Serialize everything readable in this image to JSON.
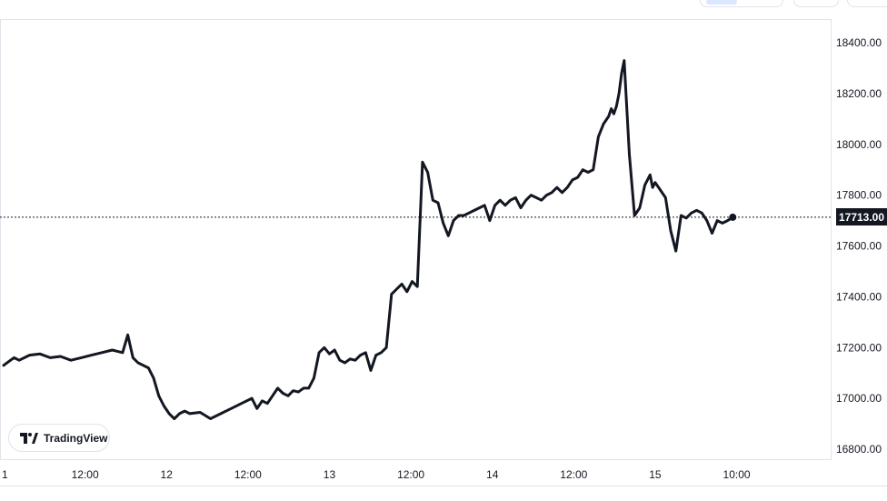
{
  "toolbar": {
    "visible_buttons": [
      "",
      "",
      ""
    ]
  },
  "branding": {
    "logo_text": "TradingView",
    "logo_icon": "tradingview-logo-icon"
  },
  "price_marker": {
    "label": "17713.00",
    "value": 17713.0,
    "color": "#131722"
  },
  "chart_data": {
    "type": "line",
    "title": "",
    "xlabel": "",
    "ylabel": "",
    "x_ticks": [
      "1",
      "12:00",
      "12",
      "12:00",
      "13",
      "12:00",
      "14",
      "12:00",
      "15",
      "10:00"
    ],
    "y_ticks": [
      "18400.00",
      "18200.00",
      "18000.00",
      "17800.00",
      "17600.00",
      "17400.00",
      "17200.00",
      "17000.00",
      "16800.00"
    ],
    "y_tick_values": [
      18400,
      18200,
      18000,
      17800,
      17600,
      17400,
      17200,
      17000,
      16800
    ],
    "ylim": [
      16770,
      18500
    ],
    "grid": false,
    "line_color": "#131722",
    "series": [
      {
        "x_hours": [
          0,
          1,
          2,
          3,
          5,
          7,
          9,
          11,
          13,
          15,
          17,
          19,
          21,
          23,
          24,
          25,
          26,
          27,
          28,
          29,
          30,
          31,
          32,
          33,
          34,
          35,
          36,
          38,
          40,
          42,
          44,
          46,
          48,
          49,
          50,
          51,
          52,
          53,
          54,
          55,
          56,
          57,
          58,
          59,
          60,
          61,
          62,
          63,
          64,
          65,
          66,
          67,
          68,
          69,
          70,
          71,
          72,
          73,
          74,
          75,
          76,
          77,
          78,
          79,
          80,
          81,
          82,
          83,
          84,
          85,
          86,
          87,
          88,
          89,
          90,
          91,
          92,
          93,
          94,
          95,
          96,
          97,
          98,
          99,
          100,
          101,
          102,
          103,
          104,
          105,
          106,
          107,
          108,
          109,
          110,
          111,
          112,
          113,
          114,
          115,
          116,
          117,
          117.5,
          118,
          118.5,
          119,
          119.5,
          120,
          121,
          122,
          123,
          124,
          125,
          125.5,
          126,
          127,
          128,
          129,
          130,
          131,
          132,
          133,
          134,
          135,
          136,
          137,
          138,
          139,
          140,
          141
        ],
        "values": [
          17130,
          17145,
          17160,
          17150,
          17170,
          17175,
          17160,
          17165,
          17150,
          17160,
          17170,
          17180,
          17190,
          17180,
          17250,
          17160,
          17140,
          17130,
          17120,
          17080,
          17010,
          16970,
          16940,
          16920,
          16940,
          16950,
          16940,
          16945,
          16920,
          16940,
          16960,
          16980,
          17000,
          16960,
          16990,
          16980,
          17010,
          17040,
          17020,
          17010,
          17030,
          17025,
          17040,
          17040,
          17080,
          17180,
          17200,
          17175,
          17190,
          17150,
          17140,
          17155,
          17150,
          17170,
          17180,
          17110,
          17170,
          17180,
          17200,
          17410,
          17430,
          17450,
          17420,
          17460,
          17440,
          17930,
          17890,
          17780,
          17770,
          17690,
          17640,
          17700,
          17720,
          17720,
          17730,
          17740,
          17750,
          17760,
          17700,
          17760,
          17780,
          17760,
          17780,
          17790,
          17750,
          17780,
          17800,
          17790,
          17780,
          17800,
          17810,
          17830,
          17810,
          17830,
          17860,
          17870,
          17900,
          17890,
          17900,
          18030,
          18080,
          18110,
          18140,
          18120,
          18150,
          18200,
          18280,
          18330,
          17960,
          17720,
          17750,
          17840,
          17880,
          17830,
          17850,
          17820,
          17790,
          17660,
          17580,
          17720,
          17710,
          17730,
          17740,
          17730,
          17700,
          17650,
          17700,
          17690,
          17700,
          17713
        ]
      }
    ],
    "x_range_hours": [
      0,
      148.5
    ],
    "x_tick_hours": [
      0,
      15.75,
      31.5,
      47.25,
      63,
      78.75,
      94.5,
      110.25,
      126,
      141.75
    ]
  }
}
